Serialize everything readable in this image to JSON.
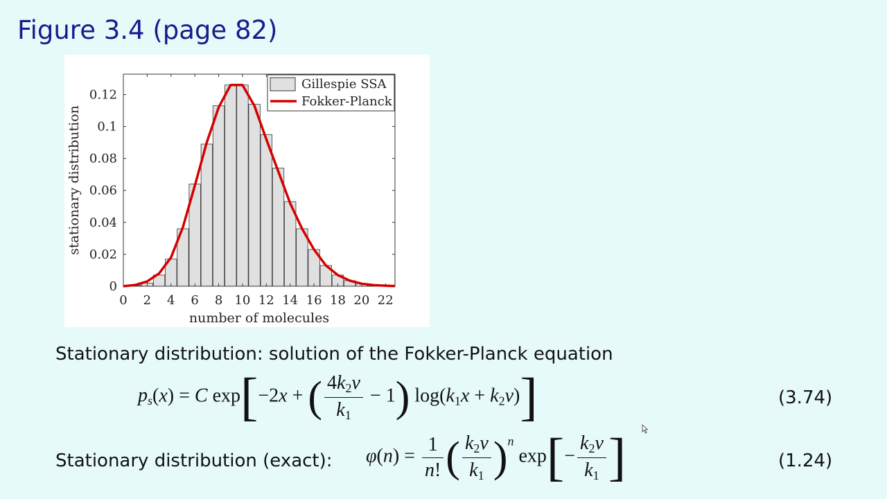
{
  "slide": {
    "title": "Figure 3.4 (page 82)"
  },
  "chart_data": {
    "type": "bar",
    "xlabel": "number of molecules",
    "ylabel": "stationary distribution",
    "xlim": [
      0,
      22.8
    ],
    "ylim": [
      0,
      0.1328
    ],
    "xticks": [
      "0",
      "2",
      "4",
      "6",
      "8",
      "10",
      "12",
      "14",
      "16",
      "18",
      "20",
      "22"
    ],
    "yticks": [
      "0",
      "0.02",
      "0.04",
      "0.06",
      "0.08",
      "0.1",
      "0.12"
    ],
    "legend_position": "top-right",
    "series": [
      {
        "name": "Gillespie SSA",
        "kind": "bar",
        "color": "#e0e0e0",
        "x": [
          0,
          1,
          2,
          3,
          4,
          5,
          6,
          7,
          8,
          9,
          10,
          11,
          12,
          13,
          14,
          15,
          16,
          17,
          18,
          19,
          20,
          21,
          22
        ],
        "values": [
          0.0001,
          0.0005,
          0.002,
          0.007,
          0.017,
          0.036,
          0.064,
          0.089,
          0.113,
          0.126,
          0.126,
          0.114,
          0.095,
          0.074,
          0.053,
          0.036,
          0.023,
          0.013,
          0.007,
          0.0035,
          0.0017,
          0.0007,
          0.0003
        ]
      },
      {
        "name": "Fokker-Planck",
        "kind": "line",
        "color": "#d40000",
        "x": [
          0,
          1,
          2,
          3,
          4,
          5,
          6,
          7,
          8,
          9,
          10,
          11,
          12,
          13,
          14,
          15,
          16,
          17,
          18,
          19,
          20,
          21,
          22,
          22.8
        ],
        "values": [
          0.0,
          0.0008,
          0.003,
          0.008,
          0.018,
          0.037,
          0.063,
          0.09,
          0.112,
          0.126,
          0.126,
          0.113,
          0.092,
          0.072,
          0.052,
          0.036,
          0.023,
          0.013,
          0.007,
          0.0035,
          0.0016,
          0.0007,
          0.0003,
          0.0001
        ]
      }
    ]
  },
  "text": {
    "line1": "Stationary distribution: solution of the Fokker-Planck equation",
    "line2": "Stationary distribution (exact):"
  },
  "equations": {
    "eq1_number": "(3.74)",
    "eq2_number": "(1.24)"
  }
}
